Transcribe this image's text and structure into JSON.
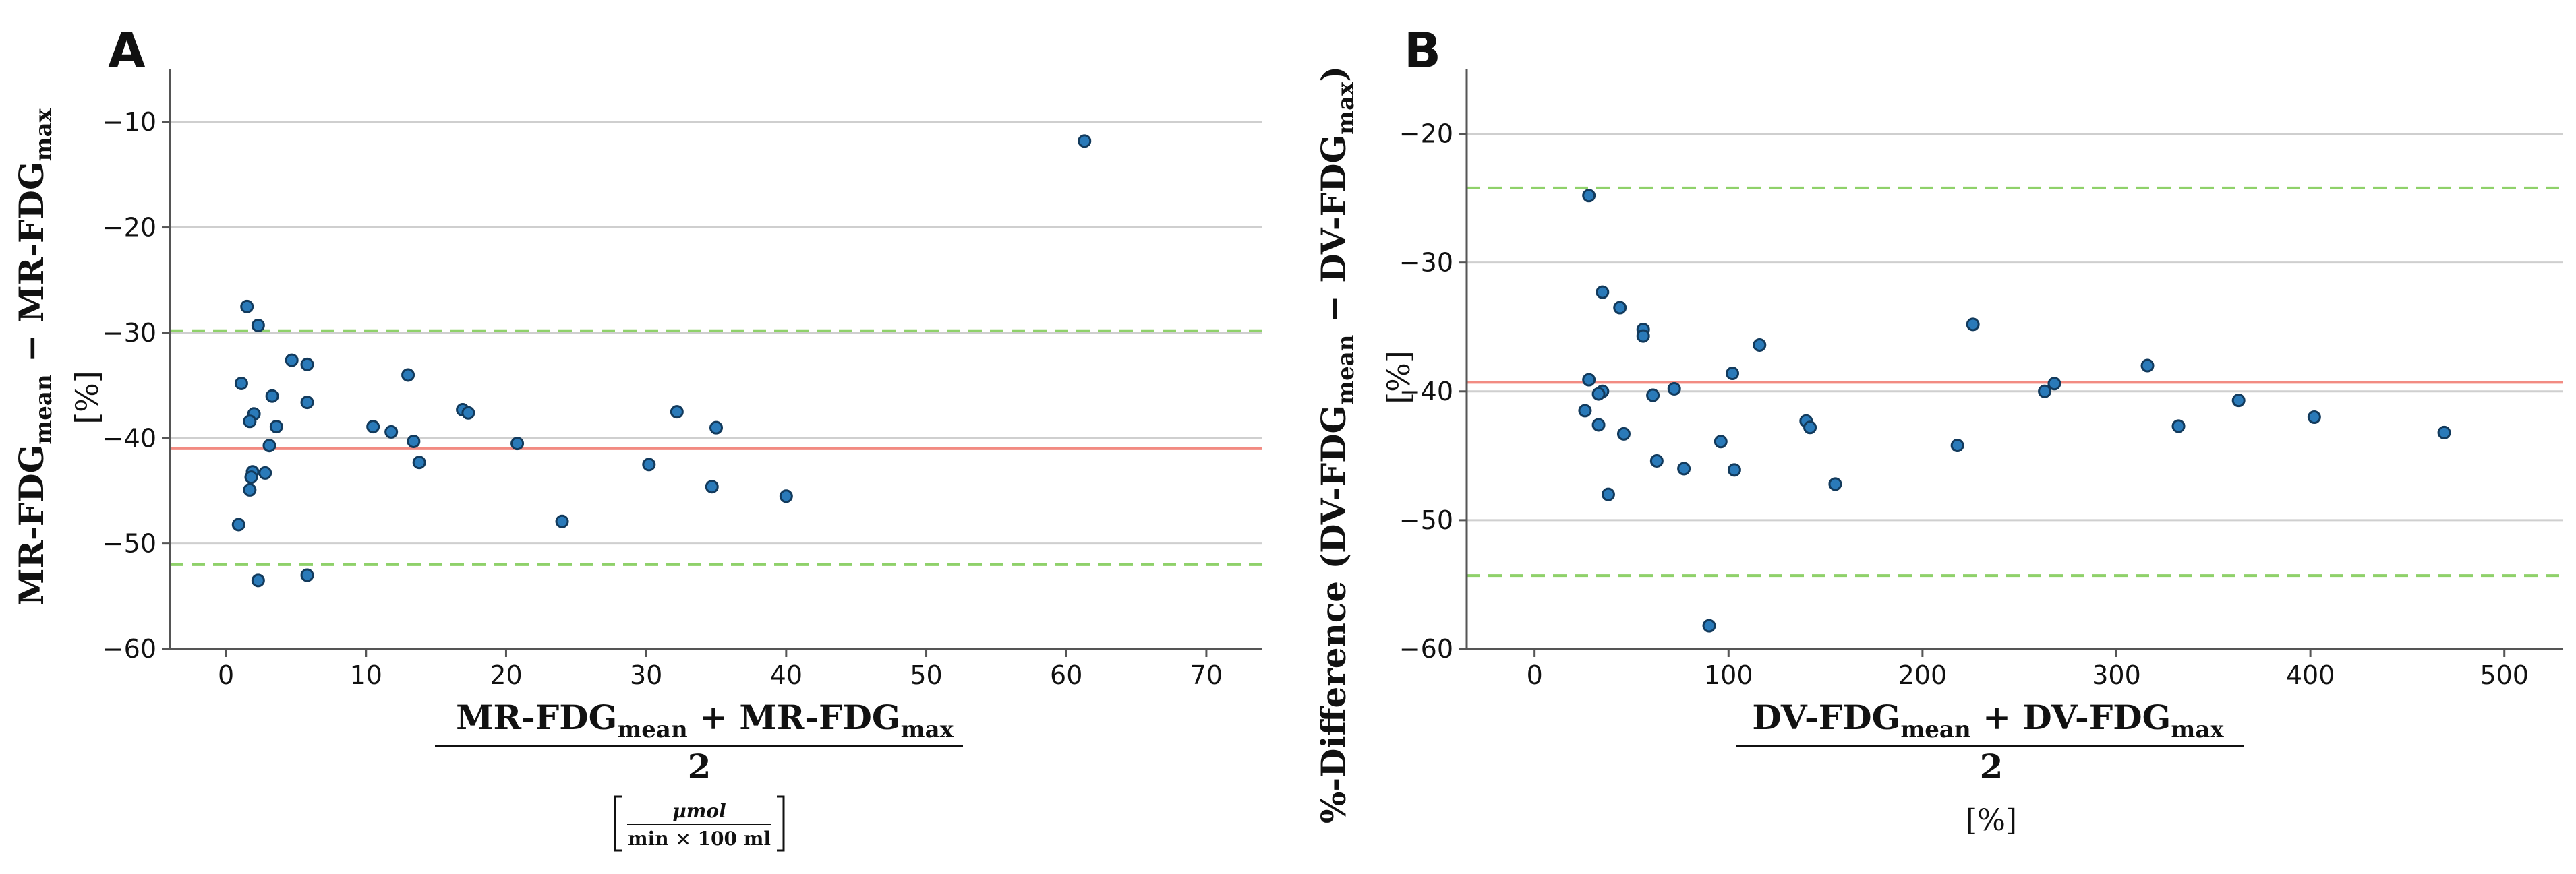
{
  "chart_data": [
    {
      "type": "scatter",
      "panel": "A",
      "ylabel": "MR-FDG_mean − MR-FDG_max",
      "ylabel_unit": "[%]",
      "xlabel": "(MR-FDG_mean + MR-FDG_max) / 2",
      "xlabel_unit": "[µmol / (min × 100 ml)]",
      "xlim": [
        -4,
        74
      ],
      "ylim": [
        -60,
        -5
      ],
      "xticks": [
        0,
        10,
        20,
        30,
        40,
        50,
        60,
        70
      ],
      "yticks": [
        -60,
        -50,
        -40,
        -30,
        -20,
        -10
      ],
      "mean_line": -41.0,
      "loa_upper": -29.8,
      "loa_lower": -52.0,
      "points": [
        [
          1.5,
          -27.5
        ],
        [
          2.3,
          -29.3
        ],
        [
          1.1,
          -34.8
        ],
        [
          2.0,
          -37.7
        ],
        [
          1.7,
          -38.4
        ],
        [
          3.3,
          -36.0
        ],
        [
          4.7,
          -32.6
        ],
        [
          5.8,
          -33.0
        ],
        [
          5.8,
          -36.6
        ],
        [
          3.6,
          -38.9
        ],
        [
          3.1,
          -40.7
        ],
        [
          1.9,
          -43.2
        ],
        [
          1.8,
          -43.7
        ],
        [
          2.8,
          -43.3
        ],
        [
          1.7,
          -44.9
        ],
        [
          0.9,
          -48.2
        ],
        [
          2.3,
          -53.5
        ],
        [
          5.8,
          -53.0
        ],
        [
          10.5,
          -38.9
        ],
        [
          11.8,
          -39.4
        ],
        [
          13.0,
          -34.0
        ],
        [
          13.4,
          -40.3
        ],
        [
          13.8,
          -42.3
        ],
        [
          16.9,
          -37.3
        ],
        [
          17.3,
          -37.6
        ],
        [
          20.8,
          -40.5
        ],
        [
          24.0,
          -47.9
        ],
        [
          30.2,
          -42.5
        ],
        [
          32.2,
          -37.5
        ],
        [
          34.7,
          -44.6
        ],
        [
          35.0,
          -39.0
        ],
        [
          40.0,
          -45.5
        ],
        [
          61.3,
          -11.8
        ]
      ]
    },
    {
      "type": "scatter",
      "panel": "B",
      "ylabel": "%-Difference (DV-FDG_mean − DV-FDG_max)",
      "ylabel_unit": "[%]",
      "xlabel": "(DV-FDG_mean + DV-FDG_max) / 2",
      "xlabel_unit": "[%]",
      "xlim": [
        -35,
        530
      ],
      "ylim": [
        -60,
        -15
      ],
      "xticks": [
        0,
        100,
        200,
        300,
        400,
        500
      ],
      "yticks": [
        -60,
        -50,
        -40,
        -30,
        -20
      ],
      "mean_line": -39.3,
      "loa_upper": -24.2,
      "loa_lower": -54.3,
      "points": [
        [
          28,
          -24.8
        ],
        [
          35,
          -32.3
        ],
        [
          44,
          -33.5
        ],
        [
          56,
          -35.2
        ],
        [
          56,
          -35.7
        ],
        [
          28,
          -39.1
        ],
        [
          35,
          -40.0
        ],
        [
          33,
          -40.2
        ],
        [
          26,
          -41.5
        ],
        [
          33,
          -42.6
        ],
        [
          46,
          -43.3
        ],
        [
          38,
          -48.0
        ],
        [
          61,
          -40.3
        ],
        [
          72,
          -39.8
        ],
        [
          63,
          -45.4
        ],
        [
          77,
          -46.0
        ],
        [
          96,
          -43.9
        ],
        [
          102,
          -38.6
        ],
        [
          103,
          -46.1
        ],
        [
          116,
          -36.4
        ],
        [
          140,
          -42.3
        ],
        [
          142,
          -42.8
        ],
        [
          155,
          -47.2
        ],
        [
          90,
          -58.2
        ],
        [
          218,
          -44.2
        ],
        [
          226,
          -34.8
        ],
        [
          263,
          -40.0
        ],
        [
          268,
          -39.4
        ],
        [
          316,
          -38.0
        ],
        [
          332,
          -42.7
        ],
        [
          363,
          -40.7
        ],
        [
          402,
          -42.0
        ],
        [
          469,
          -43.2
        ]
      ]
    }
  ],
  "panel_a": {
    "letter": "A",
    "ylabel_main": "MR-FDG",
    "ylabel_sub1": "mean",
    "ylabel_minus": " − MR-FDG",
    "ylabel_sub2": "max",
    "ylabel_unit": "[%]",
    "xlabel_num_1": "MR-FDG",
    "xlabel_sub1": "mean",
    "xlabel_plus": " + MR-FDG",
    "xlabel_sub2": "max",
    "xlabel_den": "2",
    "xunit_num": "µmol",
    "xunit_den": "min × 100 ml"
  },
  "panel_b": {
    "letter": "B",
    "ylabel_pre": "%-Difference (DV-FDG",
    "ylabel_sub1": "mean",
    "ylabel_minus": " − DV-FDG",
    "ylabel_sub2": "max",
    "ylabel_close": ")",
    "ylabel_unit": "[%]",
    "xlabel_num_1": "DV-FDG",
    "xlabel_sub1": "mean",
    "xlabel_plus": " + DV-FDG",
    "xlabel_sub2": "max",
    "xlabel_den": "2",
    "xlabel_unit": "[%]"
  },
  "colors": {
    "point_fill": "#2a7ab9",
    "point_stroke": "#123a5c",
    "mean_line": "#f28b82",
    "loa_line": "#8fd16a",
    "grid": "#cfcfcf",
    "axis": "#555555"
  }
}
